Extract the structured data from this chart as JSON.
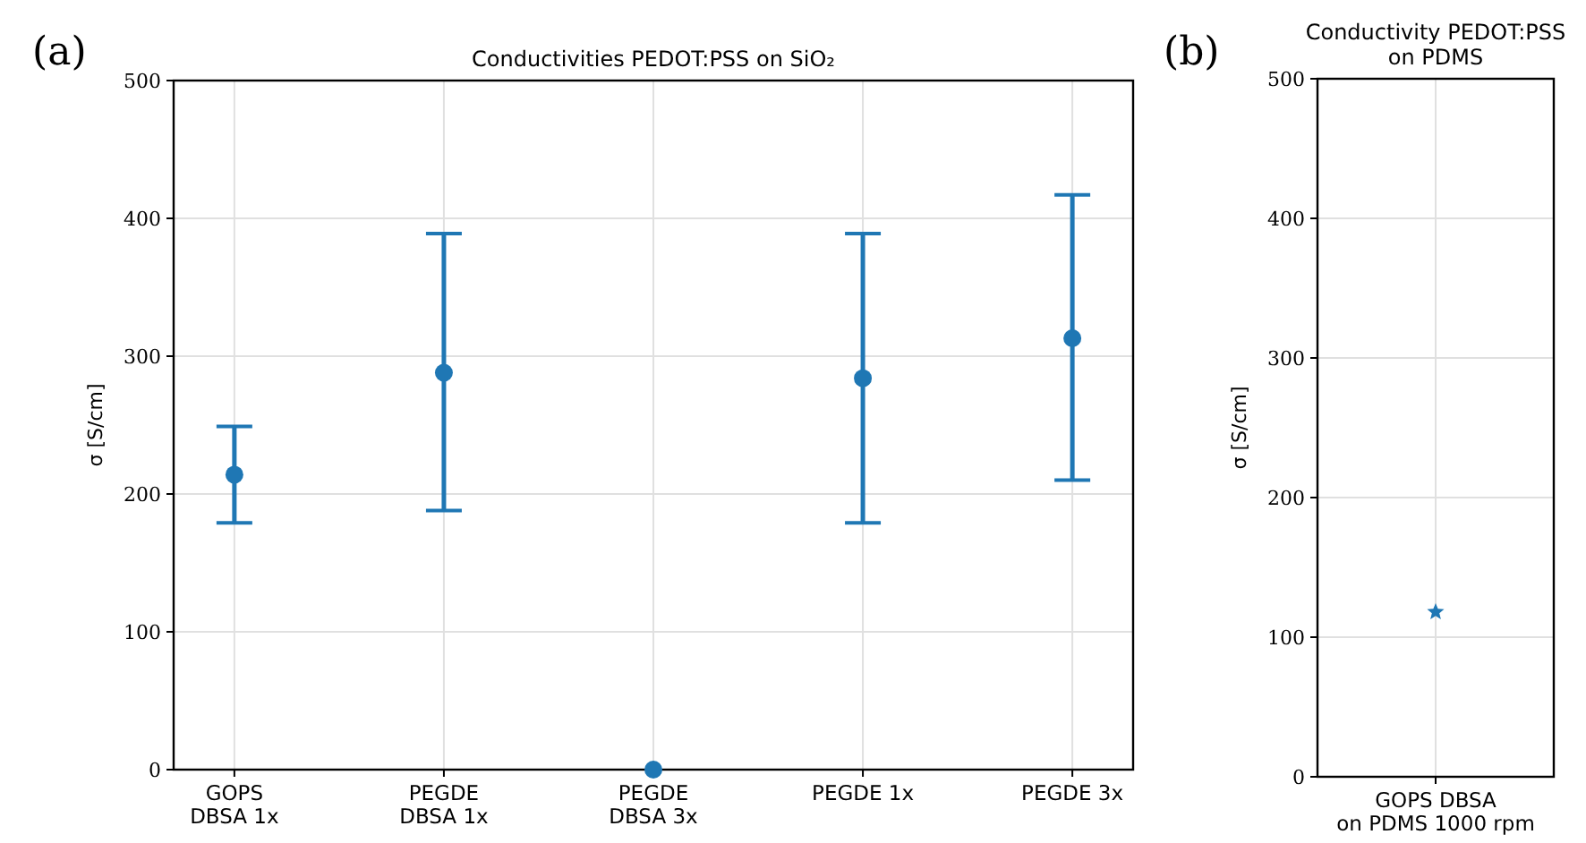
{
  "chart_data": [
    {
      "type": "scatter",
      "title": "Conductivities PEDOT:PSS on SiO₂",
      "ylabel": "σ [S/cm]",
      "categories": [
        "GOPS\nDBSA 1x",
        "PEGDE\nDBSA 1x",
        "PEGDE\nDBSA 3x",
        "PEGDE 1x",
        "PEGDE 3x"
      ],
      "series": [
        {
          "color": "#1f77b4",
          "values": [
            214,
            288,
            0,
            284,
            313
          ],
          "errors": [
            [
              179,
              249
            ],
            [
              188,
              389
            ],
            null,
            [
              179,
              389
            ],
            [
              210,
              417
            ]
          ]
        }
      ],
      "ylim": [
        0,
        500
      ],
      "yticks": [
        0,
        100,
        200,
        300,
        400,
        500
      ],
      "grid": true,
      "marker": "circle",
      "annotations": [
        "(a)"
      ]
    },
    {
      "type": "scatter",
      "title": "Conductivity PEDOT:PSS\non PDMS",
      "ylabel": "σ [S/cm]",
      "categories": [
        "GOPS DBSA\non PDMS 1000 rpm"
      ],
      "series": [
        {
          "color": "#1f77b4",
          "values": [
            118
          ]
        }
      ],
      "ylim": [
        0,
        500
      ],
      "yticks": [
        0,
        100,
        200,
        300,
        400,
        500
      ],
      "grid": true,
      "marker": "star",
      "annotations": [
        "(b)"
      ]
    }
  ]
}
